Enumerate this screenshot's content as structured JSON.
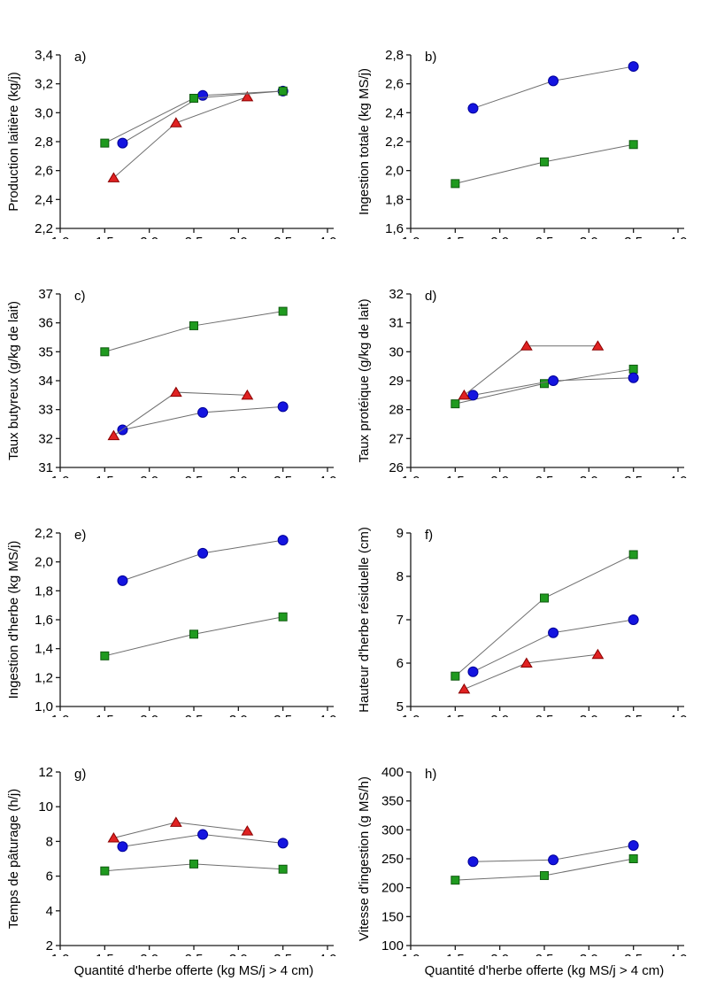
{
  "figure": {
    "xlabel": "Quantité d'herbe offerte (kg MS/j > 4 cm)",
    "x_axis": {
      "min": 1.0,
      "max": 4.0,
      "step": 0.5,
      "decimals": 1
    },
    "colors": {
      "green_fill": "#1f9a1f",
      "green_edge": "#0f5a0f",
      "blue_fill": "#1414e0",
      "blue_edge": "#000099",
      "red_fill": "#e02222",
      "red_edge": "#8b0000",
      "line": "#6e6e6e",
      "axis": "#1a1a1a"
    },
    "layout": {
      "grid_on": false,
      "legend": "none",
      "rows": 4,
      "cols": 2
    }
  },
  "chart_data": [
    {
      "type": "line",
      "id": "a",
      "tag": "a)",
      "ylabel": "Production laitière (kg/j)",
      "ymin": 2.2,
      "ymax": 3.4,
      "ystep": 0.2,
      "ydecimals": 1,
      "series": [
        {
          "name": "red-triangle",
          "marker": "triangle",
          "color": "red",
          "points": [
            [
              1.6,
              2.55
            ],
            [
              2.3,
              2.93
            ],
            [
              3.1,
              3.11
            ]
          ]
        },
        {
          "name": "blue-circle",
          "marker": "circle",
          "color": "blue",
          "points": [
            [
              1.7,
              2.79
            ],
            [
              2.6,
              3.12
            ],
            [
              3.5,
              3.15
            ]
          ]
        },
        {
          "name": "green-square",
          "marker": "square",
          "color": "green",
          "points": [
            [
              1.5,
              2.79
            ],
            [
              2.5,
              3.1
            ],
            [
              3.5,
              3.15
            ]
          ]
        }
      ]
    },
    {
      "type": "line",
      "id": "b",
      "tag": "b)",
      "ylabel": "Ingestion totale (kg MS/j)",
      "ymin": 1.6,
      "ymax": 2.8,
      "ystep": 0.2,
      "ydecimals": 1,
      "series": [
        {
          "name": "blue-circle",
          "marker": "circle",
          "color": "blue",
          "points": [
            [
              1.7,
              2.43
            ],
            [
              2.6,
              2.62
            ],
            [
              3.5,
              2.72
            ]
          ]
        },
        {
          "name": "green-square",
          "marker": "square",
          "color": "green",
          "points": [
            [
              1.5,
              1.91
            ],
            [
              2.5,
              2.06
            ],
            [
              3.5,
              2.18
            ]
          ]
        }
      ]
    },
    {
      "type": "line",
      "id": "c",
      "tag": "c)",
      "ylabel": "Taux butyreux (g/kg de lait)",
      "ymin": 31,
      "ymax": 37,
      "ystep": 1,
      "ydecimals": 0,
      "series": [
        {
          "name": "green-square",
          "marker": "square",
          "color": "green",
          "points": [
            [
              1.5,
              35.0
            ],
            [
              2.5,
              35.9
            ],
            [
              3.5,
              36.4
            ]
          ]
        },
        {
          "name": "blue-circle",
          "marker": "circle",
          "color": "blue",
          "points": [
            [
              1.7,
              32.3
            ],
            [
              2.6,
              32.9
            ],
            [
              3.5,
              33.1
            ]
          ]
        },
        {
          "name": "red-triangle",
          "marker": "triangle",
          "color": "red",
          "points": [
            [
              1.6,
              32.1
            ],
            [
              2.3,
              33.6
            ],
            [
              3.1,
              33.5
            ]
          ]
        }
      ]
    },
    {
      "type": "line",
      "id": "d",
      "tag": "d)",
      "ylabel": "Taux protéique (g/kg de lait)",
      "ymin": 26,
      "ymax": 32,
      "ystep": 1,
      "ydecimals": 0,
      "series": [
        {
          "name": "green-square",
          "marker": "square",
          "color": "green",
          "points": [
            [
              1.5,
              28.2
            ],
            [
              2.5,
              28.9
            ],
            [
              3.5,
              29.4
            ]
          ]
        },
        {
          "name": "blue-circle",
          "marker": "circle",
          "color": "blue",
          "points": [
            [
              1.7,
              28.5
            ],
            [
              2.6,
              29.0
            ],
            [
              3.5,
              29.1
            ]
          ]
        },
        {
          "name": "red-triangle",
          "marker": "triangle",
          "color": "red",
          "points": [
            [
              1.6,
              28.5
            ],
            [
              2.3,
              30.2
            ],
            [
              3.1,
              30.2
            ]
          ]
        }
      ]
    },
    {
      "type": "line",
      "id": "e",
      "tag": "e)",
      "ylabel": "Ingestion d'herbe (kg MS/j)",
      "ymin": 1.0,
      "ymax": 2.2,
      "ystep": 0.2,
      "ydecimals": 1,
      "series": [
        {
          "name": "blue-circle",
          "marker": "circle",
          "color": "blue",
          "points": [
            [
              1.7,
              1.87
            ],
            [
              2.6,
              2.06
            ],
            [
              3.5,
              2.15
            ]
          ]
        },
        {
          "name": "green-square",
          "marker": "square",
          "color": "green",
          "points": [
            [
              1.5,
              1.35
            ],
            [
              2.5,
              1.5
            ],
            [
              3.5,
              1.62
            ]
          ]
        }
      ]
    },
    {
      "type": "line",
      "id": "f",
      "tag": "f)",
      "ylabel": "Hauteur d'herbe résiduelle (cm)",
      "ymin": 5,
      "ymax": 9,
      "ystep": 1,
      "ydecimals": 0,
      "series": [
        {
          "name": "green-square",
          "marker": "square",
          "color": "green",
          "points": [
            [
              1.5,
              5.7
            ],
            [
              2.5,
              7.5
            ],
            [
              3.5,
              8.5
            ]
          ]
        },
        {
          "name": "blue-circle",
          "marker": "circle",
          "color": "blue",
          "points": [
            [
              1.7,
              5.8
            ],
            [
              2.6,
              6.7
            ],
            [
              3.5,
              7.0
            ]
          ]
        },
        {
          "name": "red-triangle",
          "marker": "triangle",
          "color": "red",
          "points": [
            [
              1.6,
              5.4
            ],
            [
              2.3,
              6.0
            ],
            [
              3.1,
              6.2
            ]
          ]
        }
      ]
    },
    {
      "type": "line",
      "id": "g",
      "tag": "g)",
      "ylabel": "Temps de pâturage (h/j)",
      "ymin": 2,
      "ymax": 12,
      "ystep": 2,
      "ydecimals": 0,
      "series": [
        {
          "name": "red-triangle",
          "marker": "triangle",
          "color": "red",
          "points": [
            [
              1.6,
              8.2
            ],
            [
              2.3,
              9.1
            ],
            [
              3.1,
              8.6
            ]
          ]
        },
        {
          "name": "blue-circle",
          "marker": "circle",
          "color": "blue",
          "points": [
            [
              1.7,
              7.7
            ],
            [
              2.6,
              8.4
            ],
            [
              3.5,
              7.9
            ]
          ]
        },
        {
          "name": "green-square",
          "marker": "square",
          "color": "green",
          "points": [
            [
              1.5,
              6.3
            ],
            [
              2.5,
              6.7
            ],
            [
              3.5,
              6.4
            ]
          ]
        }
      ]
    },
    {
      "type": "line",
      "id": "h",
      "tag": "h)",
      "ylabel": "Vitesse d'ingestion (g MS/h)",
      "ymin": 100,
      "ymax": 400,
      "ystep": 50,
      "ydecimals": 0,
      "series": [
        {
          "name": "blue-circle",
          "marker": "circle",
          "color": "blue",
          "points": [
            [
              1.7,
              245
            ],
            [
              2.6,
              248
            ],
            [
              3.5,
              273
            ]
          ]
        },
        {
          "name": "green-square",
          "marker": "square",
          "color": "green",
          "points": [
            [
              1.5,
              213
            ],
            [
              2.5,
              221
            ],
            [
              3.5,
              250
            ]
          ]
        }
      ]
    }
  ]
}
